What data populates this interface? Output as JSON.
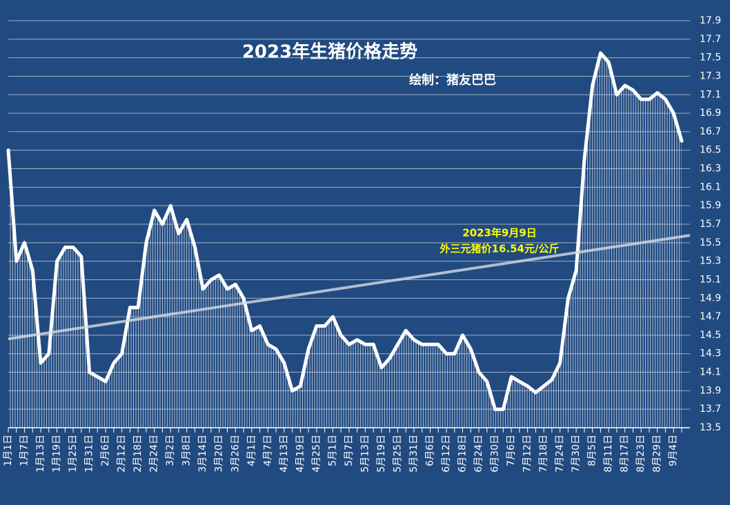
{
  "chart_data": {
    "type": "line",
    "title": "2023年生猪价格走势",
    "subtitle": "绘制：猪友巴巴",
    "annotation": [
      "2023年9月9日",
      "外三元猪价16.54元/公斤"
    ],
    "categories": [
      "1月1日",
      null,
      "1月7日",
      null,
      "1月13日",
      null,
      "1月19日",
      null,
      "1月25日",
      null,
      "1月31日",
      null,
      "2月6日",
      null,
      "2月12日",
      null,
      "2月18日",
      null,
      "2月24日",
      null,
      "3月2日",
      null,
      "3月8日",
      null,
      "3月14日",
      null,
      "3月20日",
      null,
      "3月26日",
      null,
      "4月1日",
      null,
      "4月7日",
      null,
      "4月13日",
      null,
      "4月19日",
      null,
      "4月25日",
      null,
      "5月1日",
      null,
      "5月7日",
      null,
      "5月13日",
      null,
      "5月19日",
      null,
      "5月25日",
      null,
      "5月31日",
      null,
      "6月6日",
      null,
      "6月12日",
      null,
      "6月18日",
      null,
      "6月24日",
      null,
      "6月30日",
      null,
      "7月6日",
      null,
      "7月12日",
      null,
      "7月18日",
      null,
      "7月24日",
      null,
      "7月30日",
      null,
      "8月5日",
      null,
      "8月11日",
      null,
      "8月17日",
      null,
      "8月23日",
      null,
      "8月29日",
      null,
      "9月4日",
      null
    ],
    "values": [
      16.5,
      15.3,
      15.5,
      15.2,
      14.2,
      14.3,
      15.3,
      15.45,
      15.45,
      15.35,
      14.1,
      14.05,
      14.0,
      14.2,
      14.3,
      14.8,
      14.8,
      15.5,
      15.85,
      15.7,
      15.9,
      15.6,
      15.75,
      15.45,
      15.0,
      15.1,
      15.15,
      15.0,
      15.05,
      14.9,
      14.55,
      14.6,
      14.4,
      14.35,
      14.2,
      13.9,
      13.95,
      14.35,
      14.6,
      14.6,
      14.7,
      14.5,
      14.4,
      14.45,
      14.4,
      14.4,
      14.15,
      14.25,
      14.4,
      14.55,
      14.45,
      14.4,
      14.4,
      14.4,
      14.3,
      14.3,
      14.5,
      14.35,
      14.1,
      14.0,
      13.7,
      13.7,
      14.05,
      14.0,
      13.95,
      13.88,
      13.95,
      14.02,
      14.2,
      14.9,
      15.2,
      16.4,
      17.2,
      17.55,
      17.45,
      17.1,
      17.2,
      17.15,
      17.05,
      17.05,
      17.12,
      17.05,
      16.9,
      16.6
    ],
    "color": "#ffffff",
    "trendline": [
      14.46,
      15.58
    ],
    "ylim": [
      13.5,
      17.9
    ],
    "yticks": [
      13.5,
      13.7,
      13.9,
      14.1,
      14.3,
      14.5,
      14.7,
      14.9,
      15.1,
      15.3,
      15.5,
      15.7,
      15.9,
      16.1,
      16.3,
      16.5,
      16.7,
      16.9,
      17.1,
      17.3,
      17.5,
      17.7,
      17.9
    ],
    "grid": true
  }
}
